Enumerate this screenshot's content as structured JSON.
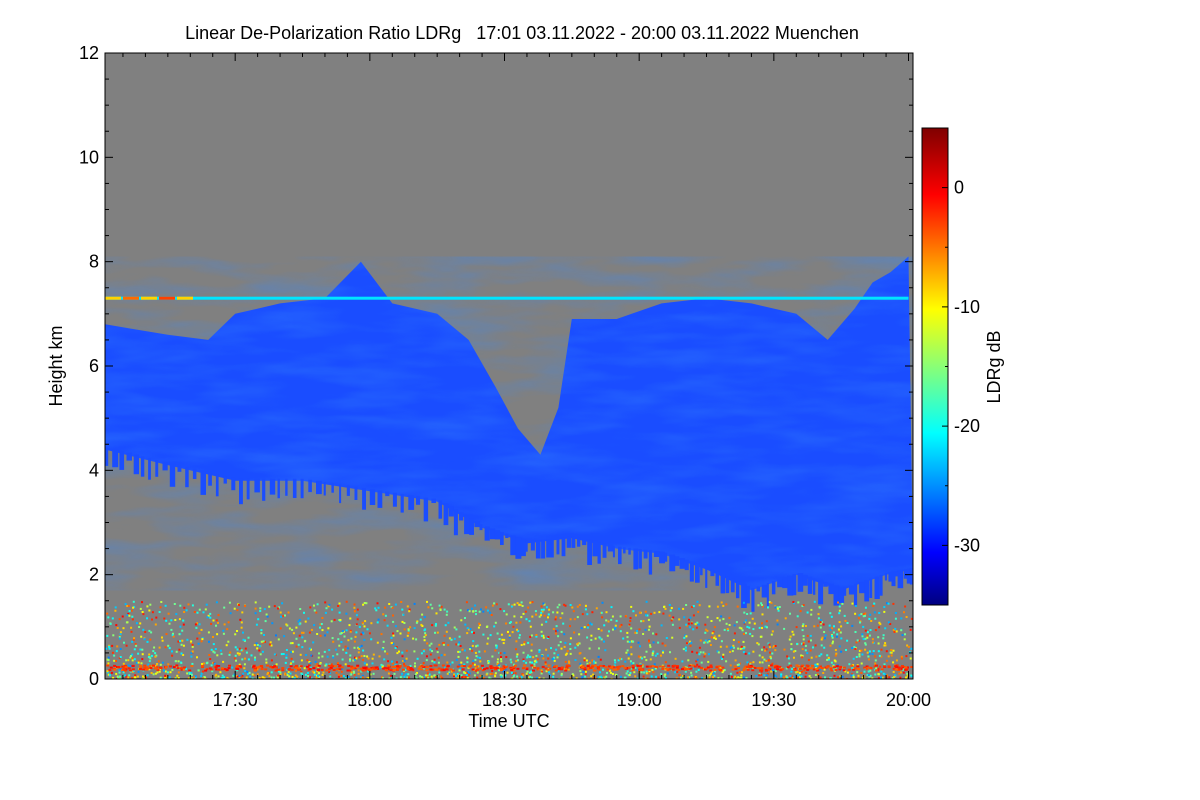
{
  "chart_data": {
    "type": "heatmap",
    "title": "Linear De-Polarization Ratio LDRg   17:01 03.11.2022 - 20:00 03.11.2022 Muenchen",
    "xlabel": "Time UTC",
    "ylabel": "Height km",
    "x_range": [
      "17:01",
      "20:01"
    ],
    "xticks": [
      "17:30",
      "18:00",
      "18:30",
      "19:00",
      "19:30",
      "20:00"
    ],
    "ylim": [
      0,
      12
    ],
    "yticks": [
      0,
      2,
      4,
      6,
      8,
      10,
      12
    ],
    "colorbar": {
      "label": "LDRg dB",
      "range": [
        -35,
        5
      ],
      "ticks": [
        -30,
        -20,
        -10,
        0
      ],
      "colormap": "jet"
    },
    "colors": {
      "no_data": "#808080",
      "cloud_main": "#1a4dff",
      "cloud_core": "#0a2fe0"
    },
    "cloud_layer": {
      "ldr_typical_db": -28,
      "top_km": [
        {
          "t": "17:01",
          "h": 6.8
        },
        {
          "t": "17:15",
          "h": 6.6
        },
        {
          "t": "17:24",
          "h": 6.5
        },
        {
          "t": "17:30",
          "h": 7.0
        },
        {
          "t": "17:40",
          "h": 7.2
        },
        {
          "t": "17:50",
          "h": 7.3
        },
        {
          "t": "17:58",
          "h": 8.0
        },
        {
          "t": "18:05",
          "h": 7.2
        },
        {
          "t": "18:15",
          "h": 7.0
        },
        {
          "t": "18:22",
          "h": 6.5
        },
        {
          "t": "18:28",
          "h": 5.6
        },
        {
          "t": "18:33",
          "h": 4.8
        },
        {
          "t": "18:38",
          "h": 4.3
        },
        {
          "t": "18:42",
          "h": 5.2
        },
        {
          "t": "18:45",
          "h": 6.9
        },
        {
          "t": "18:55",
          "h": 6.9
        },
        {
          "t": "19:05",
          "h": 7.2
        },
        {
          "t": "19:15",
          "h": 7.3
        },
        {
          "t": "19:25",
          "h": 7.2
        },
        {
          "t": "19:35",
          "h": 7.0
        },
        {
          "t": "19:42",
          "h": 6.5
        },
        {
          "t": "19:48",
          "h": 7.1
        },
        {
          "t": "19:52",
          "h": 7.6
        },
        {
          "t": "19:56",
          "h": 7.8
        },
        {
          "t": "20:00",
          "h": 8.1
        }
      ],
      "base_km": [
        {
          "t": "17:01",
          "h": 4.4
        },
        {
          "t": "17:15",
          "h": 4.1
        },
        {
          "t": "17:30",
          "h": 3.8
        },
        {
          "t": "17:45",
          "h": 3.8
        },
        {
          "t": "18:00",
          "h": 3.6
        },
        {
          "t": "18:15",
          "h": 3.4
        },
        {
          "t": "18:25",
          "h": 2.9
        },
        {
          "t": "18:35",
          "h": 2.6
        },
        {
          "t": "18:45",
          "h": 2.7
        },
        {
          "t": "18:55",
          "h": 2.5
        },
        {
          "t": "19:05",
          "h": 2.4
        },
        {
          "t": "19:15",
          "h": 2.1
        },
        {
          "t": "19:25",
          "h": 1.7
        },
        {
          "t": "19:35",
          "h": 2.0
        },
        {
          "t": "19:45",
          "h": 1.7
        },
        {
          "t": "19:55",
          "h": 2.0
        },
        {
          "t": "20:01",
          "h": 2.1
        }
      ]
    },
    "residual_layer": {
      "height_km": 7.3,
      "t_start": "17:01",
      "t_end": "20:00",
      "ldr_db": -21
    },
    "boundary_layer": {
      "height_range_km": [
        0,
        1.5
      ],
      "ldr_range_db": [
        -25,
        0
      ]
    }
  }
}
